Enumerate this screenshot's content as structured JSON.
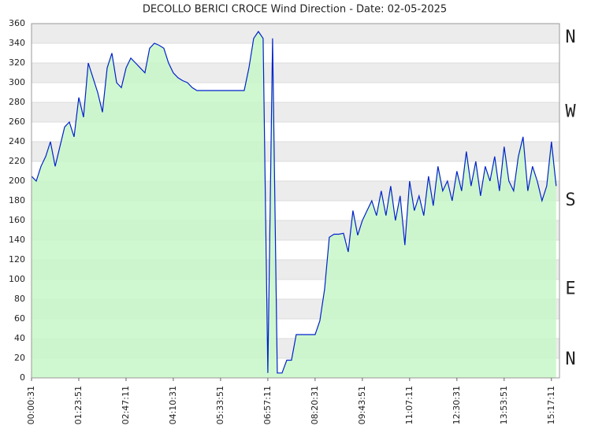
{
  "chart_data": {
    "type": "line",
    "title": "DECOLLO BERICI CROCE Wind Direction - Date: 02-05-2025",
    "x": [
      "00:00:31",
      "00:08:51",
      "00:17:11",
      "00:25:31",
      "00:33:51",
      "00:42:11",
      "00:50:31",
      "00:58:51",
      "01:07:11",
      "01:15:31",
      "01:23:51",
      "01:32:11",
      "01:40:31",
      "01:48:51",
      "01:57:11",
      "02:05:31",
      "02:13:51",
      "02:22:11",
      "02:30:31",
      "02:38:51",
      "02:47:11",
      "02:55:31",
      "03:03:51",
      "03:12:11",
      "03:20:31",
      "03:28:51",
      "03:37:11",
      "03:45:31",
      "03:53:51",
      "04:02:11",
      "04:10:31",
      "04:18:51",
      "04:27:11",
      "04:35:31",
      "04:43:51",
      "04:52:11",
      "05:00:31",
      "05:08:51",
      "05:17:11",
      "05:25:31",
      "05:33:51",
      "05:42:11",
      "05:50:31",
      "05:58:51",
      "06:07:11",
      "06:15:31",
      "06:23:51",
      "06:32:11",
      "06:40:31",
      "06:48:51",
      "06:57:11",
      "07:05:31",
      "07:13:51",
      "07:22:11",
      "07:30:31",
      "07:38:51",
      "07:47:11",
      "07:55:31",
      "08:03:51",
      "08:12:11",
      "08:20:31",
      "08:28:51",
      "08:37:11",
      "08:45:31",
      "08:53:51",
      "09:02:11",
      "09:10:31",
      "09:18:51",
      "09:27:11",
      "09:35:31",
      "09:43:51",
      "09:52:11",
      "10:00:31",
      "10:08:51",
      "10:17:11",
      "10:25:31",
      "10:33:51",
      "10:42:11",
      "10:50:31",
      "10:58:51",
      "11:07:11",
      "11:15:31",
      "11:23:51",
      "11:32:11",
      "11:40:31",
      "11:48:51",
      "11:57:11",
      "12:05:31",
      "12:13:51",
      "12:22:11",
      "12:30:31",
      "12:38:51",
      "12:47:11",
      "12:55:31",
      "13:03:51",
      "13:12:11",
      "13:20:31",
      "13:28:51",
      "13:37:11",
      "13:45:31",
      "13:53:51",
      "14:02:11",
      "14:10:31",
      "14:18:51",
      "14:27:11",
      "14:35:31",
      "14:43:51",
      "14:52:11",
      "15:00:31",
      "15:08:51",
      "15:17:11",
      "15:25:31"
    ],
    "series": [
      {
        "color": "#0022cc",
        "values": [
          205,
          200,
          215,
          225,
          240,
          215,
          235,
          255,
          260,
          245,
          285,
          265,
          320,
          305,
          290,
          270,
          315,
          330,
          300,
          295,
          315,
          325,
          320,
          315,
          310,
          335,
          340,
          338,
          335,
          320,
          310,
          305,
          302,
          300,
          295,
          292,
          292,
          292,
          292,
          292,
          292,
          292,
          292,
          292,
          292,
          292,
          315,
          345,
          352,
          345,
          5,
          345,
          5,
          5,
          18,
          18,
          44,
          44,
          44,
          44,
          44,
          58,
          90,
          143,
          146,
          146,
          147,
          128,
          170,
          145,
          160,
          170,
          180,
          165,
          190,
          165,
          195,
          160,
          185,
          135,
          200,
          170,
          185,
          165,
          205,
          175,
          215,
          190,
          200,
          180,
          210,
          190,
          230,
          195,
          220,
          185,
          215,
          200,
          225,
          190,
          235,
          200,
          190,
          225,
          245,
          190,
          215,
          200,
          180,
          195,
          240,
          195
        ]
      }
    ],
    "xlim": [
      "00:00:31",
      "15:31:24"
    ],
    "xticks": [
      "00:00:31",
      "01:23:51",
      "02:47:11",
      "04:10:31",
      "05:33:51",
      "06:57:11",
      "08:20:31",
      "09:43:51",
      "11:07:11",
      "12:30:31",
      "13:53:51",
      "15:17:11"
    ],
    "ylim": [
      0,
      360
    ],
    "yticks": [
      0,
      20,
      40,
      60,
      80,
      100,
      120,
      140,
      160,
      180,
      200,
      220,
      240,
      260,
      280,
      300,
      320,
      340,
      360
    ],
    "compass": [
      {
        "value": 360,
        "label": "N"
      },
      {
        "value": 270,
        "label": "W"
      },
      {
        "value": 180,
        "label": "S"
      },
      {
        "value": 90,
        "label": "E"
      },
      {
        "value": 0,
        "label": "N"
      }
    ],
    "fill_color": "#c8f7c8"
  }
}
